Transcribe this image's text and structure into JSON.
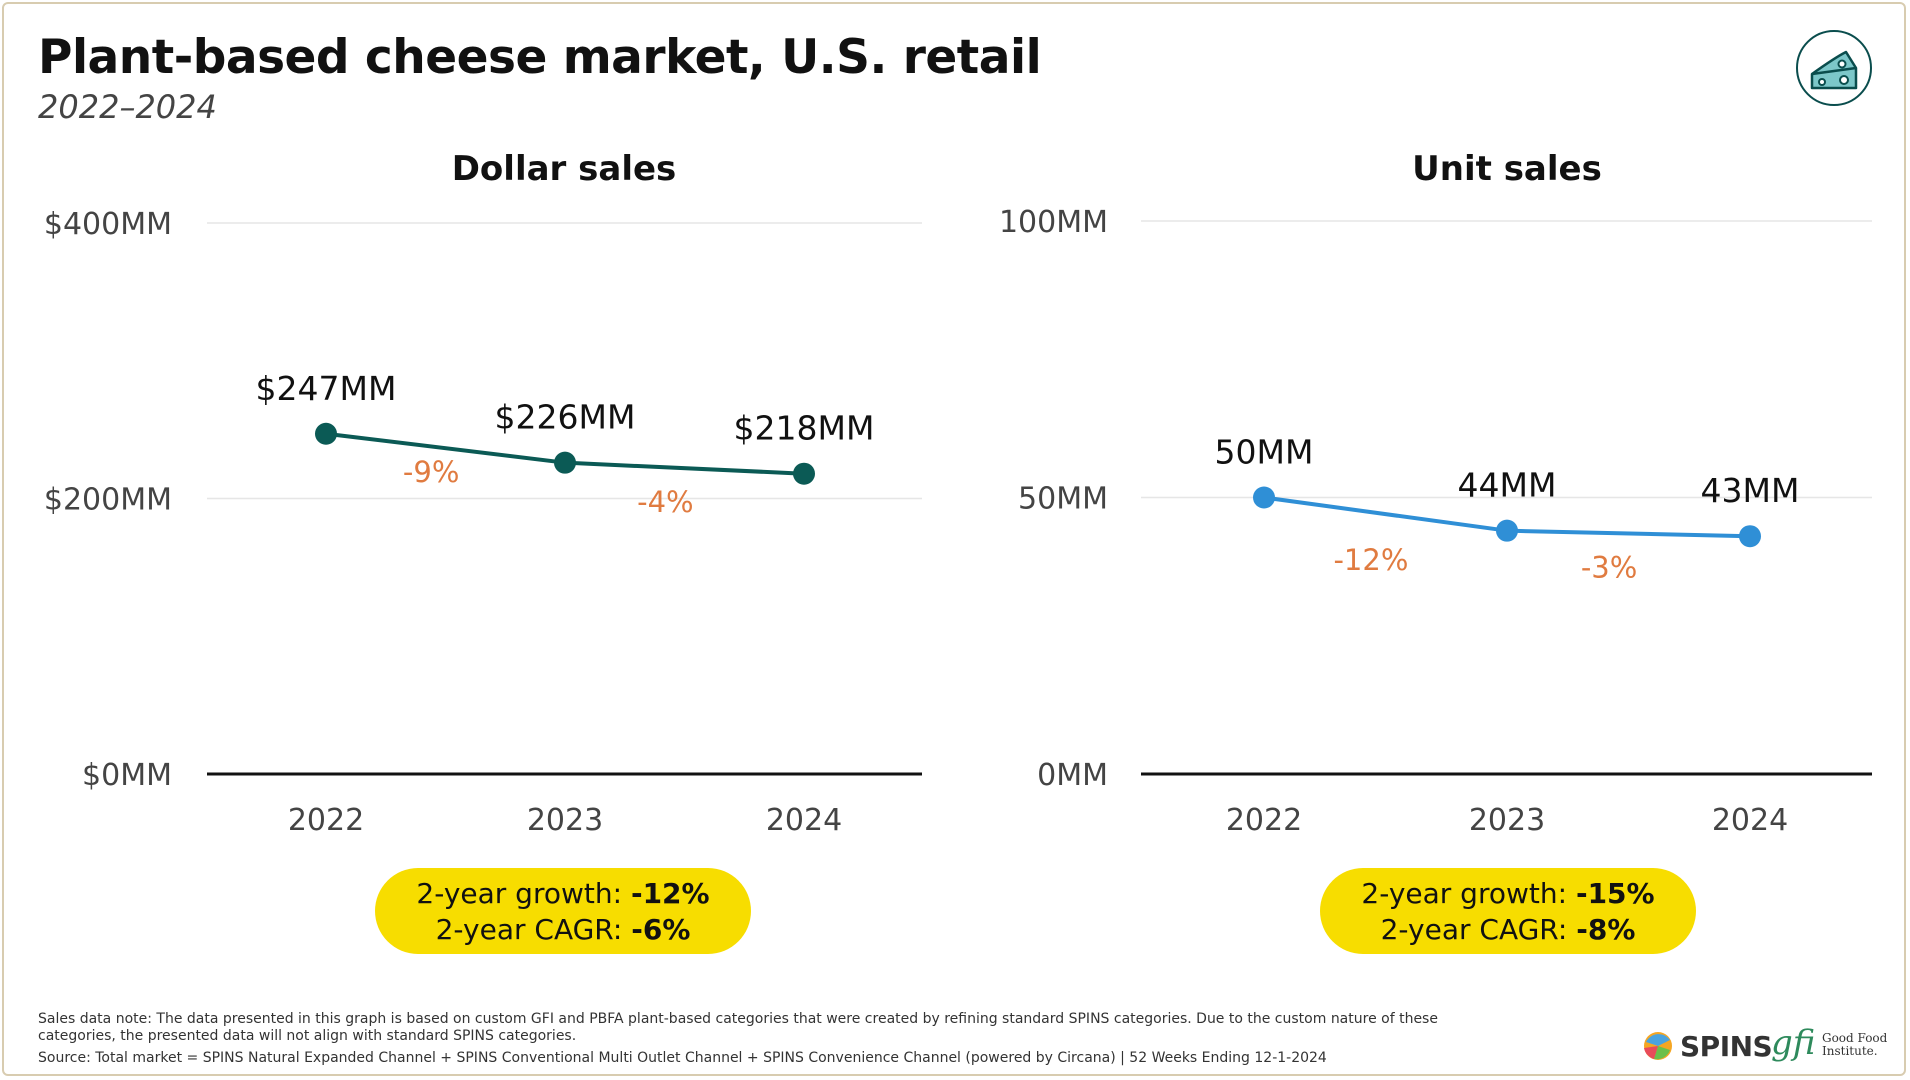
{
  "title": "Plant-based cheese market, U.S. retail",
  "subtitle": "2022–2024",
  "icon": "cheese-icon",
  "colors": {
    "dollar_line": "#0b5a55",
    "unit_line": "#2f8fd6",
    "growth_text": "#e07b40",
    "pill_bg": "#f7dd00"
  },
  "chart_data": [
    {
      "type": "line",
      "title": "Dollar sales",
      "x": [
        "2022",
        "2023",
        "2024"
      ],
      "series": [
        {
          "values": [
            247,
            226,
            218
          ]
        }
      ],
      "point_labels": [
        "$247MM",
        "$226MM",
        "$218MM"
      ],
      "change_labels": [
        "-9%",
        "-4%"
      ],
      "yticks": [
        0,
        200,
        400
      ],
      "ytick_labels": [
        "$0MM",
        "$200MM",
        "$400MM"
      ],
      "ylim": [
        0,
        400
      ],
      "grid": true,
      "summary": {
        "growth_label": "2-year growth:",
        "growth_value": "-12%",
        "cagr_label": "2-year CAGR:",
        "cagr_value": "-6%"
      }
    },
    {
      "type": "line",
      "title": "Unit sales",
      "x": [
        "2022",
        "2023",
        "2024"
      ],
      "series": [
        {
          "values": [
            50,
            44,
            43
          ]
        }
      ],
      "point_labels": [
        "50MM",
        "44MM",
        "43MM"
      ],
      "change_labels": [
        "-12%",
        "-3%"
      ],
      "yticks": [
        0,
        50,
        100
      ],
      "ytick_labels": [
        "0MM",
        "50MM",
        "100MM"
      ],
      "ylim": [
        0,
        100
      ],
      "grid": true,
      "summary": {
        "growth_label": "2-year growth:",
        "growth_value": "-15%",
        "cagr_label": "2-year CAGR:",
        "cagr_value": "-8%"
      }
    }
  ],
  "footnote": {
    "note": "Sales data note: The data presented in this graph is based on custom GFI and PBFA plant-based categories that were created by refining standard SPINS categories. Due to the custom nature of these categories, the presented data will not align with standard SPINS categories.",
    "source": "Source: Total market = SPINS Natural Expanded Channel + SPINS Conventional Multi Outlet Channel + SPINS Convenience Channel (powered by Circana) | 52 Weeks Ending 12-1-2024"
  },
  "logos": {
    "spins": "SPINS",
    "gfi_mark": "gfi",
    "gfi_name_1": "Good Food",
    "gfi_name_2": "Institute."
  }
}
